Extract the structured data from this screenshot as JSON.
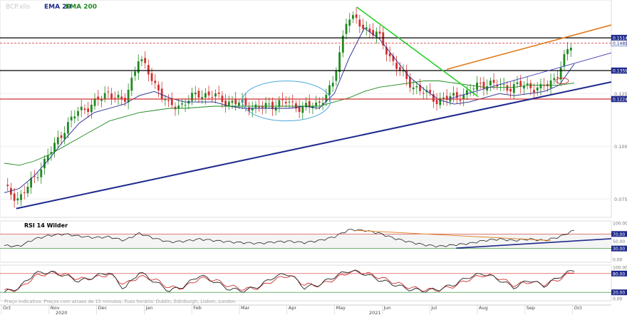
{
  "header": {
    "symbol": "BCP.xlis",
    "ema20_label": "EMA 20",
    "ema200_label": "EMA 200",
    "ema20_color": "#1f2a8c",
    "ema200_color": "#1e8a1e"
  },
  "footer": {
    "note": "Preço indicativo. Preços com atraso de 15 minutos. Fuso horário: Dublin, Edinburgh, Lisbon, London"
  },
  "chart_data": [
    {
      "type": "candlestick",
      "title": "BCP.xlis",
      "ylim": [
        0.068,
        0.168
      ],
      "y_ticks": [
        "0.0750",
        "0.1000",
        "0.1250"
      ],
      "price_levels": [
        {
          "label": "0.1514",
          "value": 0.1514,
          "color": "#000000"
        },
        {
          "label": "0.1489",
          "value": 0.1489,
          "color": "#d23030"
        },
        {
          "label": "0.1359",
          "value": 0.1359,
          "color": "#000000"
        },
        {
          "label": "0.1224",
          "value": 0.1224,
          "color": "#d23030"
        }
      ],
      "x_labels": [
        "Oct",
        "Nov",
        "Dec",
        "Jan",
        "Feb",
        "Mar",
        "Apr",
        "May",
        "Jun",
        "Jul",
        "Aug",
        "Sep",
        "Oct"
      ],
      "years": [
        "2020",
        "2021"
      ],
      "colors": {
        "up": "#1e8a1e",
        "down": "#d23030"
      },
      "series": [
        {
          "name": "EMA 20",
          "color": "#1f2a8c",
          "values": [
            0.078,
            0.08,
            0.086,
            0.094,
            0.103,
            0.111,
            0.116,
            0.118,
            0.12,
            0.124,
            0.126,
            0.123,
            0.121,
            0.121,
            0.121,
            0.119,
            0.118,
            0.118,
            0.118,
            0.118,
            0.119,
            0.118,
            0.125,
            0.142,
            0.156,
            0.151,
            0.142,
            0.133,
            0.127,
            0.122,
            0.12,
            0.121,
            0.123,
            0.125,
            0.124,
            0.125,
            0.126,
            0.129,
            0.139
          ]
        },
        {
          "name": "EMA 200",
          "color": "#1e8a1e",
          "values": [
            0.092,
            0.091,
            0.093,
            0.096,
            0.1,
            0.104,
            0.108,
            0.112,
            0.114,
            0.116,
            0.117,
            0.118,
            0.118,
            0.1185,
            0.119,
            0.119,
            0.119,
            0.119,
            0.119,
            0.119,
            0.119,
            0.119,
            0.121,
            0.123,
            0.126,
            0.128,
            0.129,
            0.13,
            0.131,
            0.131,
            0.13,
            0.129,
            0.128,
            0.128,
            0.128,
            0.129,
            0.129,
            0.129,
            0.13
          ]
        },
        {
          "name": "Price",
          "color": "#1e8a1e",
          "values": [
            0.08,
            0.075,
            0.085,
            0.096,
            0.108,
            0.117,
            0.12,
            0.126,
            0.12,
            0.142,
            0.131,
            0.119,
            0.12,
            0.125,
            0.124,
            0.121,
            0.12,
            0.118,
            0.12,
            0.121,
            0.118,
            0.12,
            0.128,
            0.162,
            0.157,
            0.153,
            0.141,
            0.131,
            0.126,
            0.122,
            0.123,
            0.125,
            0.13,
            0.129,
            0.128,
            0.129,
            0.127,
            0.133,
            0.148
          ]
        }
      ]
    },
    {
      "type": "line",
      "title": "RSI 14 Wilder",
      "ylim": [
        0,
        100
      ],
      "y_ticks": [
        "100.00",
        "70.00",
        "50.00",
        "30.00",
        "0.00"
      ],
      "bands": [
        70,
        30
      ],
      "series": [
        {
          "name": "RSI 14 Wilder",
          "values": [
            38,
            36,
            56,
            66,
            70,
            64,
            60,
            62,
            52,
            72,
            58,
            48,
            50,
            56,
            52,
            48,
            46,
            44,
            48,
            50,
            46,
            52,
            62,
            82,
            80,
            72,
            58,
            48,
            40,
            36,
            40,
            44,
            52,
            56,
            52,
            56,
            52,
            62,
            80
          ]
        }
      ]
    },
    {
      "type": "line",
      "title": "",
      "ylim": [
        0,
        100
      ],
      "y_ticks": [
        "100.00",
        "80.00",
        "20.00",
        "0.00"
      ],
      "bands": [
        80,
        20
      ],
      "series": [
        {
          "name": "",
          "values": [
            20,
            35,
            80,
            85,
            75,
            55,
            70,
            85,
            30,
            85,
            55,
            25,
            40,
            75,
            55,
            30,
            25,
            40,
            70,
            80,
            35,
            45,
            70,
            90,
            80,
            60,
            45,
            30,
            25,
            30,
            45,
            70,
            80,
            60,
            35,
            60,
            40,
            70,
            92
          ]
        },
        {
          "name": "",
          "values": [
            25,
            30,
            70,
            82,
            78,
            62,
            66,
            78,
            45,
            70,
            62,
            35,
            35,
            65,
            60,
            40,
            30,
            35,
            60,
            75,
            45,
            42,
            62,
            85,
            83,
            68,
            52,
            36,
            28,
            28,
            40,
            62,
            76,
            66,
            42,
            54,
            45,
            62,
            88
          ]
        }
      ]
    }
  ]
}
